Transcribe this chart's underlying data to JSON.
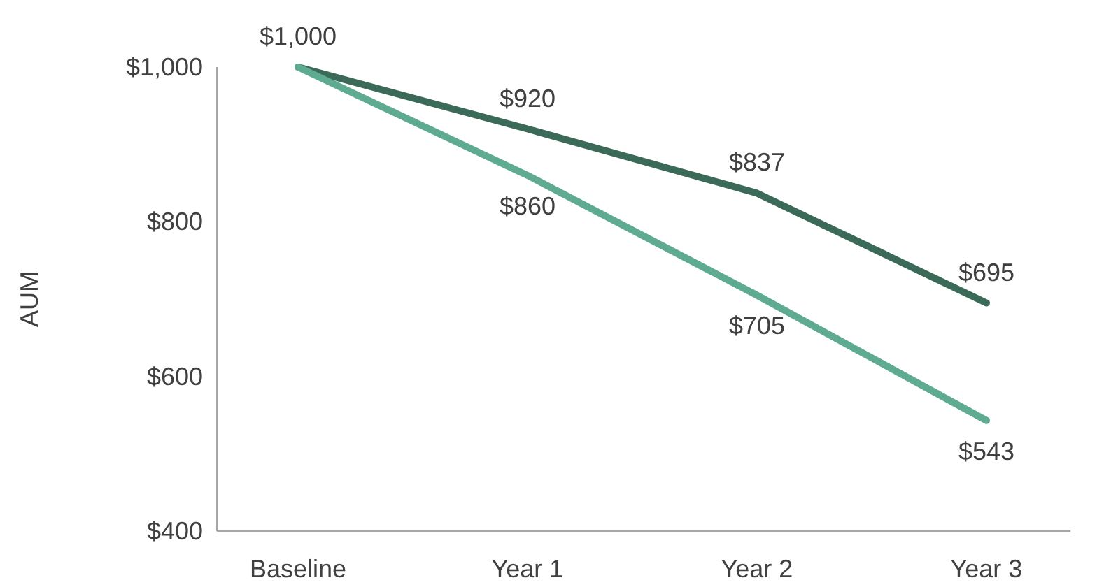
{
  "chart_data": {
    "type": "line",
    "ylabel": "AUM",
    "categories": [
      "Baseline",
      "Year 1",
      "Year 2",
      "Year 3"
    ],
    "series": [
      {
        "color": "#3b6b58",
        "values": [
          1000,
          920,
          837,
          695
        ],
        "value_labels": [
          "$1,000",
          "$920",
          "$837",
          "$695"
        ]
      },
      {
        "color": "#5eab91",
        "values": [
          1000,
          860,
          705,
          543
        ],
        "value_labels": [
          null,
          "$860",
          "$705",
          "$543"
        ]
      }
    ],
    "ylim": [
      400,
      1000
    ],
    "yticks": [
      {
        "value": 400,
        "label": "$400"
      },
      {
        "value": 600,
        "label": "$600"
      },
      {
        "value": 800,
        "label": "$800"
      },
      {
        "value": 1000,
        "label": "$1,000"
      }
    ],
    "marker": "none",
    "line_style": "solid"
  }
}
